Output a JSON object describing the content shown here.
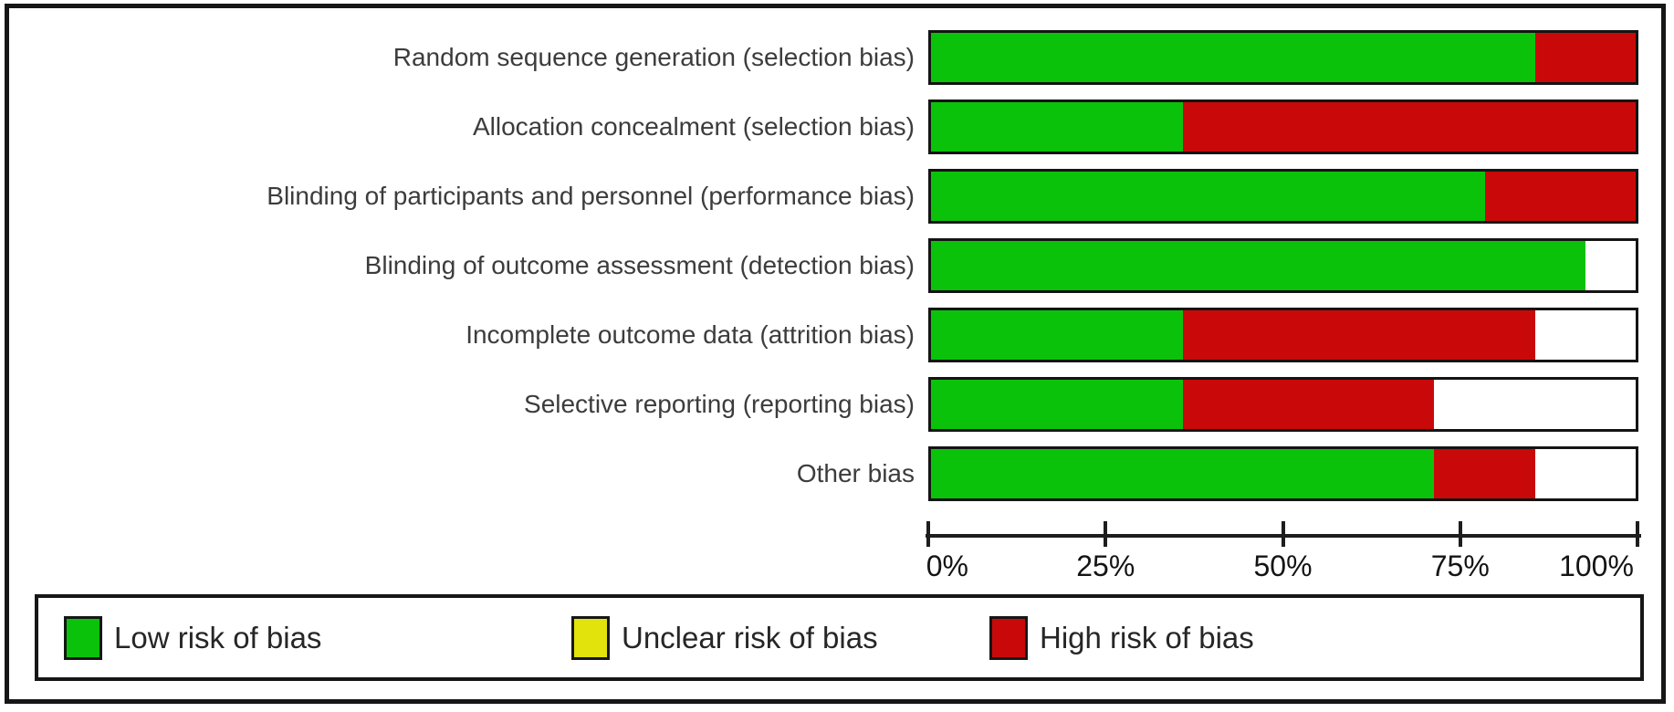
{
  "chart_data": {
    "type": "bar",
    "variant": "horizontal-stacked-percent",
    "categories": [
      "Random sequence generation (selection bias)",
      "Allocation concealment (selection bias)",
      "Blinding of participants and personnel (performance bias)",
      "Blinding of outcome assessment (detection bias)",
      "Incomplete outcome data (attrition bias)",
      "Selective reporting (reporting bias)",
      "Other bias"
    ],
    "series": [
      {
        "name": "Low risk of bias",
        "color": "#0bc20b",
        "values": [
          85.7,
          35.7,
          78.6,
          92.9,
          35.7,
          35.7,
          71.4
        ]
      },
      {
        "name": "Unclear risk of bias",
        "color": "#e2e20c",
        "values": [
          0,
          0,
          0,
          0,
          0,
          0,
          0
        ]
      },
      {
        "name": "High risk of bias",
        "color": "#c90909",
        "values": [
          14.3,
          64.3,
          21.4,
          0,
          50.0,
          35.7,
          14.3
        ]
      }
    ],
    "x_ticks": [
      "0%",
      "25%",
      "50%",
      "75%",
      "100%"
    ],
    "xlim": [
      0,
      100
    ],
    "grid": false,
    "legend_position": "bottom",
    "bar_background": "#ffffff",
    "bar_border_color": "#141414"
  },
  "legend": {
    "items": [
      {
        "label": "Low risk of bias",
        "color": "#0bc20b"
      },
      {
        "label": "Unclear risk of bias",
        "color": "#e2e20c"
      },
      {
        "label": "High risk of bias",
        "color": "#c90909"
      }
    ]
  }
}
